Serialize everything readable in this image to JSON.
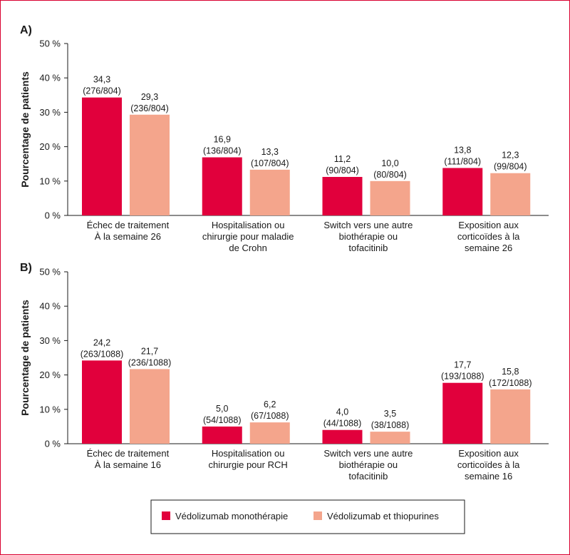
{
  "chart_data": [
    {
      "type": "bar",
      "panel_label": "A)",
      "ylabel": "Pourcentage de patients",
      "ylim": [
        0,
        50
      ],
      "yticks": [
        "0 %",
        "10 %",
        "20 %",
        "30 %",
        "40 %",
        "50 %"
      ],
      "categories": [
        [
          "Échec de traitement",
          "À la semaine 26"
        ],
        [
          "Hospitalisation ou",
          "chirurgie pour maladie",
          "de Crohn"
        ],
        [
          "Switch vers une autre",
          "biothérapie ou",
          "tofacitinib"
        ],
        [
          "Exposition aux",
          "corticoïdes à la",
          "semaine 26"
        ]
      ],
      "series": [
        {
          "name": "Védolizumab monothérapie",
          "values": [
            34.3,
            16.9,
            11.2,
            13.8
          ],
          "labels": [
            "34,3",
            "16,9",
            "11,2",
            "13,8"
          ],
          "counts": [
            "(276/804)",
            "(136/804)",
            "(90/804)",
            "(111/804)"
          ]
        },
        {
          "name": "Védolizumab et thiopurines",
          "values": [
            29.3,
            13.3,
            10.0,
            12.3
          ],
          "labels": [
            "29,3",
            "13,3",
            "10,0",
            "12,3"
          ],
          "counts": [
            "(236/804)",
            "(107/804)",
            "(80/804)",
            "(99/804)"
          ]
        }
      ]
    },
    {
      "type": "bar",
      "panel_label": "B)",
      "ylabel": "Pourcentage de patients",
      "ylim": [
        0,
        50
      ],
      "yticks": [
        "0 %",
        "10 %",
        "20 %",
        "30 %",
        "40 %",
        "50 %"
      ],
      "categories": [
        [
          "Échec de traitement",
          "À la semaine 16"
        ],
        [
          "Hospitalisation ou",
          "chirurgie pour RCH"
        ],
        [
          "Switch vers une autre",
          "biothérapie ou",
          "tofacitinib"
        ],
        [
          "Exposition aux",
          "corticoïdes à la",
          "semaine 16"
        ]
      ],
      "series": [
        {
          "name": "Védolizumab monothérapie",
          "values": [
            24.2,
            5.0,
            4.0,
            17.7
          ],
          "labels": [
            "24,2",
            "5,0",
            "4,0",
            "17,7"
          ],
          "counts": [
            "(263/1088)",
            "(54/1088)",
            "(44/1088)",
            "(193/1088)"
          ]
        },
        {
          "name": "Védolizumab et thiopurines",
          "values": [
            21.7,
            6.2,
            3.5,
            15.8
          ],
          "labels": [
            "21,7",
            "6,2",
            "3,5",
            "15,8"
          ],
          "counts": [
            "(236/1088)",
            "(67/1088)",
            "(38/1088)",
            "(172/1088)"
          ]
        }
      ]
    }
  ],
  "legend": {
    "items": [
      {
        "label": "Védolizumab monothérapie",
        "color": "#e1003c"
      },
      {
        "label": "Védolizumab et thiopurines",
        "color": "#f4a58c"
      }
    ]
  },
  "colors": {
    "series1": "#e1003c",
    "series2": "#f4a58c",
    "frame": "#d9002f"
  }
}
